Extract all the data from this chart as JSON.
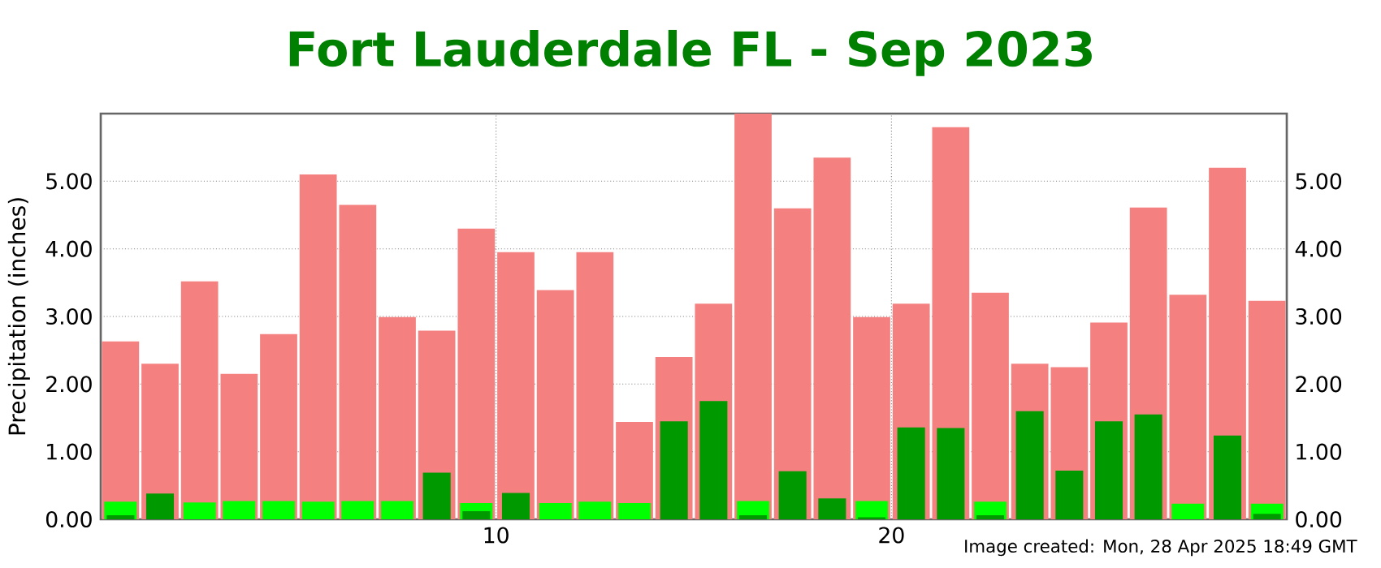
{
  "chart_data": {
    "type": "bar",
    "title": "Fort Lauderdale FL - Sep 2023",
    "ylabel": "Precipitation (inches)",
    "x": [
      1,
      2,
      3,
      4,
      5,
      6,
      7,
      8,
      9,
      10,
      11,
      12,
      13,
      14,
      15,
      16,
      17,
      18,
      19,
      20,
      21,
      22,
      23,
      24,
      25,
      26,
      27,
      28,
      29,
      30
    ],
    "series": [
      {
        "color": "#f58080",
        "values": [
          2.63,
          2.3,
          3.52,
          2.15,
          2.74,
          5.1,
          4.65,
          2.99,
          2.79,
          4.3,
          3.95,
          3.39,
          3.95,
          1.44,
          2.4,
          3.19,
          6.0,
          4.6,
          5.35,
          2.99,
          3.19,
          5.8,
          3.35,
          2.3,
          2.25,
          2.91,
          4.61,
          3.32,
          5.2,
          3.23
        ]
      },
      {
        "color": "#00ff00",
        "values": [
          0.26,
          null,
          0.25,
          0.27,
          0.27,
          0.26,
          0.27,
          0.27,
          null,
          0.24,
          null,
          0.24,
          0.26,
          0.24,
          null,
          null,
          0.27,
          null,
          null,
          0.27,
          null,
          null,
          0.26,
          null,
          null,
          null,
          null,
          0.23,
          null,
          0.23
        ]
      },
      {
        "color": "#009900",
        "values": [
          0.06,
          0.38,
          0,
          0,
          0,
          0,
          0,
          0,
          0.69,
          0.12,
          0.39,
          0,
          0,
          0,
          1.45,
          1.75,
          0.06,
          0.71,
          0.31,
          0.03,
          1.36,
          1.35,
          0.06,
          1.6,
          0.72,
          1.45,
          1.55,
          0,
          1.24,
          0.08
        ]
      }
    ],
    "xlim": [
      0,
      30
    ],
    "xticks": [
      10,
      20
    ],
    "ylim": [
      0,
      6
    ],
    "yticks": [
      {
        "value": 0,
        "label": "0.00"
      },
      {
        "value": 1,
        "label": "1.00"
      },
      {
        "value": 2,
        "label": "2.00"
      },
      {
        "value": 3,
        "label": "3.00"
      },
      {
        "value": 4,
        "label": "4.00"
      },
      {
        "value": 5,
        "label": "5.00"
      }
    ],
    "y2lim": [
      0,
      6
    ],
    "y2ticks": [
      {
        "value": 0,
        "label": "0.00"
      },
      {
        "value": 1,
        "label": "1.00"
      },
      {
        "value": 2,
        "label": "2.00"
      },
      {
        "value": 3,
        "label": "3.00"
      },
      {
        "value": 4,
        "label": "4.00"
      },
      {
        "value": 5,
        "label": "5.00"
      }
    ],
    "grid": true,
    "annotations": [
      "Image created: Mon, 28 Apr 2025 18:49 GMT"
    ]
  }
}
